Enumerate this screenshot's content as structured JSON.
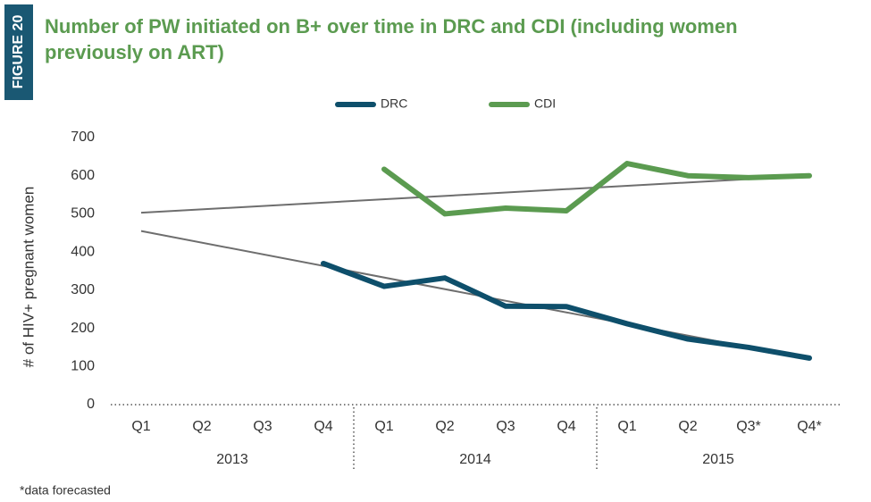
{
  "chart_data": {
    "type": "line",
    "figure_label": "FIGURE 20",
    "title_lines": [
      "Number of PW initiated on B+ over time in DRC and CDI (including women",
      "previously on ART)"
    ],
    "y_label": "# of HIV+ pregnant women",
    "footnote": "*data forecasted",
    "categories": [
      "Q1",
      "Q2",
      "Q3",
      "Q4",
      "Q1",
      "Q2",
      "Q3",
      "Q4",
      "Q1",
      "Q2",
      "Q3*",
      "Q4*"
    ],
    "years": [
      "2013",
      "2014",
      "2015"
    ],
    "series": [
      {
        "name": "DRC",
        "color": "#0e4f6b",
        "values": [
          null,
          null,
          null,
          370,
          310,
          332,
          258,
          257,
          212,
          172,
          150,
          122
        ]
      },
      {
        "name": "CDI",
        "color": "#5b9b50",
        "values": [
          null,
          null,
          null,
          null,
          617,
          500,
          515,
          508,
          632,
          600,
          595,
          600
        ]
      }
    ],
    "trend_lines": [
      {
        "color": "#6e6e6e",
        "start": 503,
        "end": 600
      },
      {
        "color": "#6e6e6e",
        "start": 455,
        "end": 120
      }
    ],
    "ylim": [
      0,
      700
    ],
    "yticks": [
      0,
      100,
      200,
      300,
      400,
      500,
      600,
      700
    ],
    "legend": "top"
  }
}
